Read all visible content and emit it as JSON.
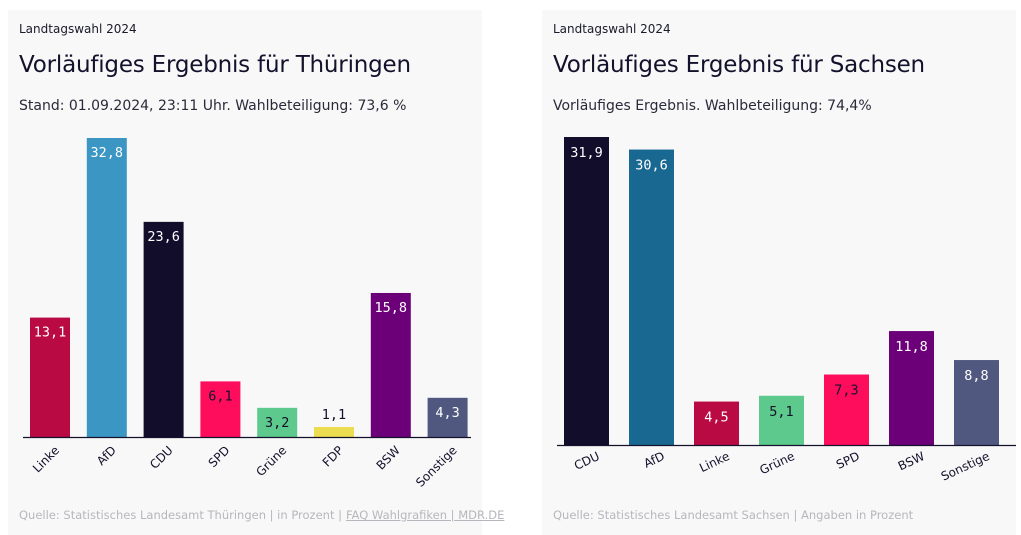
{
  "charts": [
    {
      "kicker": "Landtagswahl 2024",
      "title": "Vorläufiges Ergebnis für Thüringen",
      "subtitle": "Stand: 01.09.2024, 23:11 Uhr. Wahlbeteiligung: 73,6 %",
      "footer_text": "Quelle: Statistisches Landesamt Thüringen | in Prozent |",
      "footer_link": "FAQ Wahlgrafiken | MDR.DE"
    },
    {
      "kicker": "Landtagswahl 2024",
      "title": "Vorläufiges Ergebnis für Sachsen",
      "subtitle": "Vorläufiges Ergebnis. Wahlbeteiligung: 74,4%",
      "footer_text": "Quelle: Statistisches Landesamt Sachsen | Angaben in Prozent"
    }
  ],
  "chart_data": [
    {
      "type": "bar",
      "title": "Vorläufiges Ergebnis für Thüringen",
      "subtitle": "Stand: 01.09.2024, 23:11 Uhr. Wahlbeteiligung: 73,6 %",
      "xlabel": "",
      "ylabel": "in Prozent",
      "categories": [
        "Linke",
        "AfD",
        "CDU",
        "SPD",
        "Grüne",
        "FDP",
        "BSW",
        "Sonstige"
      ],
      "values": [
        13.1,
        32.8,
        23.6,
        6.1,
        3.2,
        1.1,
        15.8,
        4.3
      ],
      "labels": [
        "13,1",
        "32,8",
        "23,6",
        "6,1",
        "3,2",
        "1,1",
        "15,8",
        "4,3"
      ],
      "colors": [
        "#b90a44",
        "#3b96c4",
        "#110d2b",
        "#fd0d5c",
        "#5ec98c",
        "#ecdc50",
        "#6b0079",
        "#51587f"
      ],
      "label_colors": [
        "#ffffff",
        "#ffffff",
        "#ffffff",
        "#13112b",
        "#13112b",
        "#13112b",
        "#ffffff",
        "#ffffff"
      ],
      "ylim": [
        0,
        32.8
      ],
      "grid": false,
      "legend": "none"
    },
    {
      "type": "bar",
      "title": "Vorläufiges Ergebnis für Sachsen",
      "subtitle": "Vorläufiges Ergebnis. Wahlbeteiligung: 74,4%",
      "xlabel": "",
      "ylabel": "Angaben in Prozent",
      "categories": [
        "CDU",
        "AfD",
        "Linke",
        "Grüne",
        "SPD",
        "BSW",
        "Sonstige"
      ],
      "values": [
        31.9,
        30.6,
        4.5,
        5.1,
        7.3,
        11.8,
        8.8
      ],
      "labels": [
        "31,9",
        "30,6",
        "4,5",
        "5,1",
        "7,3",
        "11,8",
        "8,8"
      ],
      "colors": [
        "#110d2b",
        "#186892",
        "#b90a44",
        "#5ec98c",
        "#fd0d5c",
        "#6b0079",
        "#51587f"
      ],
      "label_colors": [
        "#ffffff",
        "#ffffff",
        "#ffffff",
        "#13112b",
        "#13112b",
        "#ffffff",
        "#ffffff"
      ],
      "ylim": [
        0,
        31.9
      ],
      "grid": false,
      "legend": "none"
    }
  ]
}
